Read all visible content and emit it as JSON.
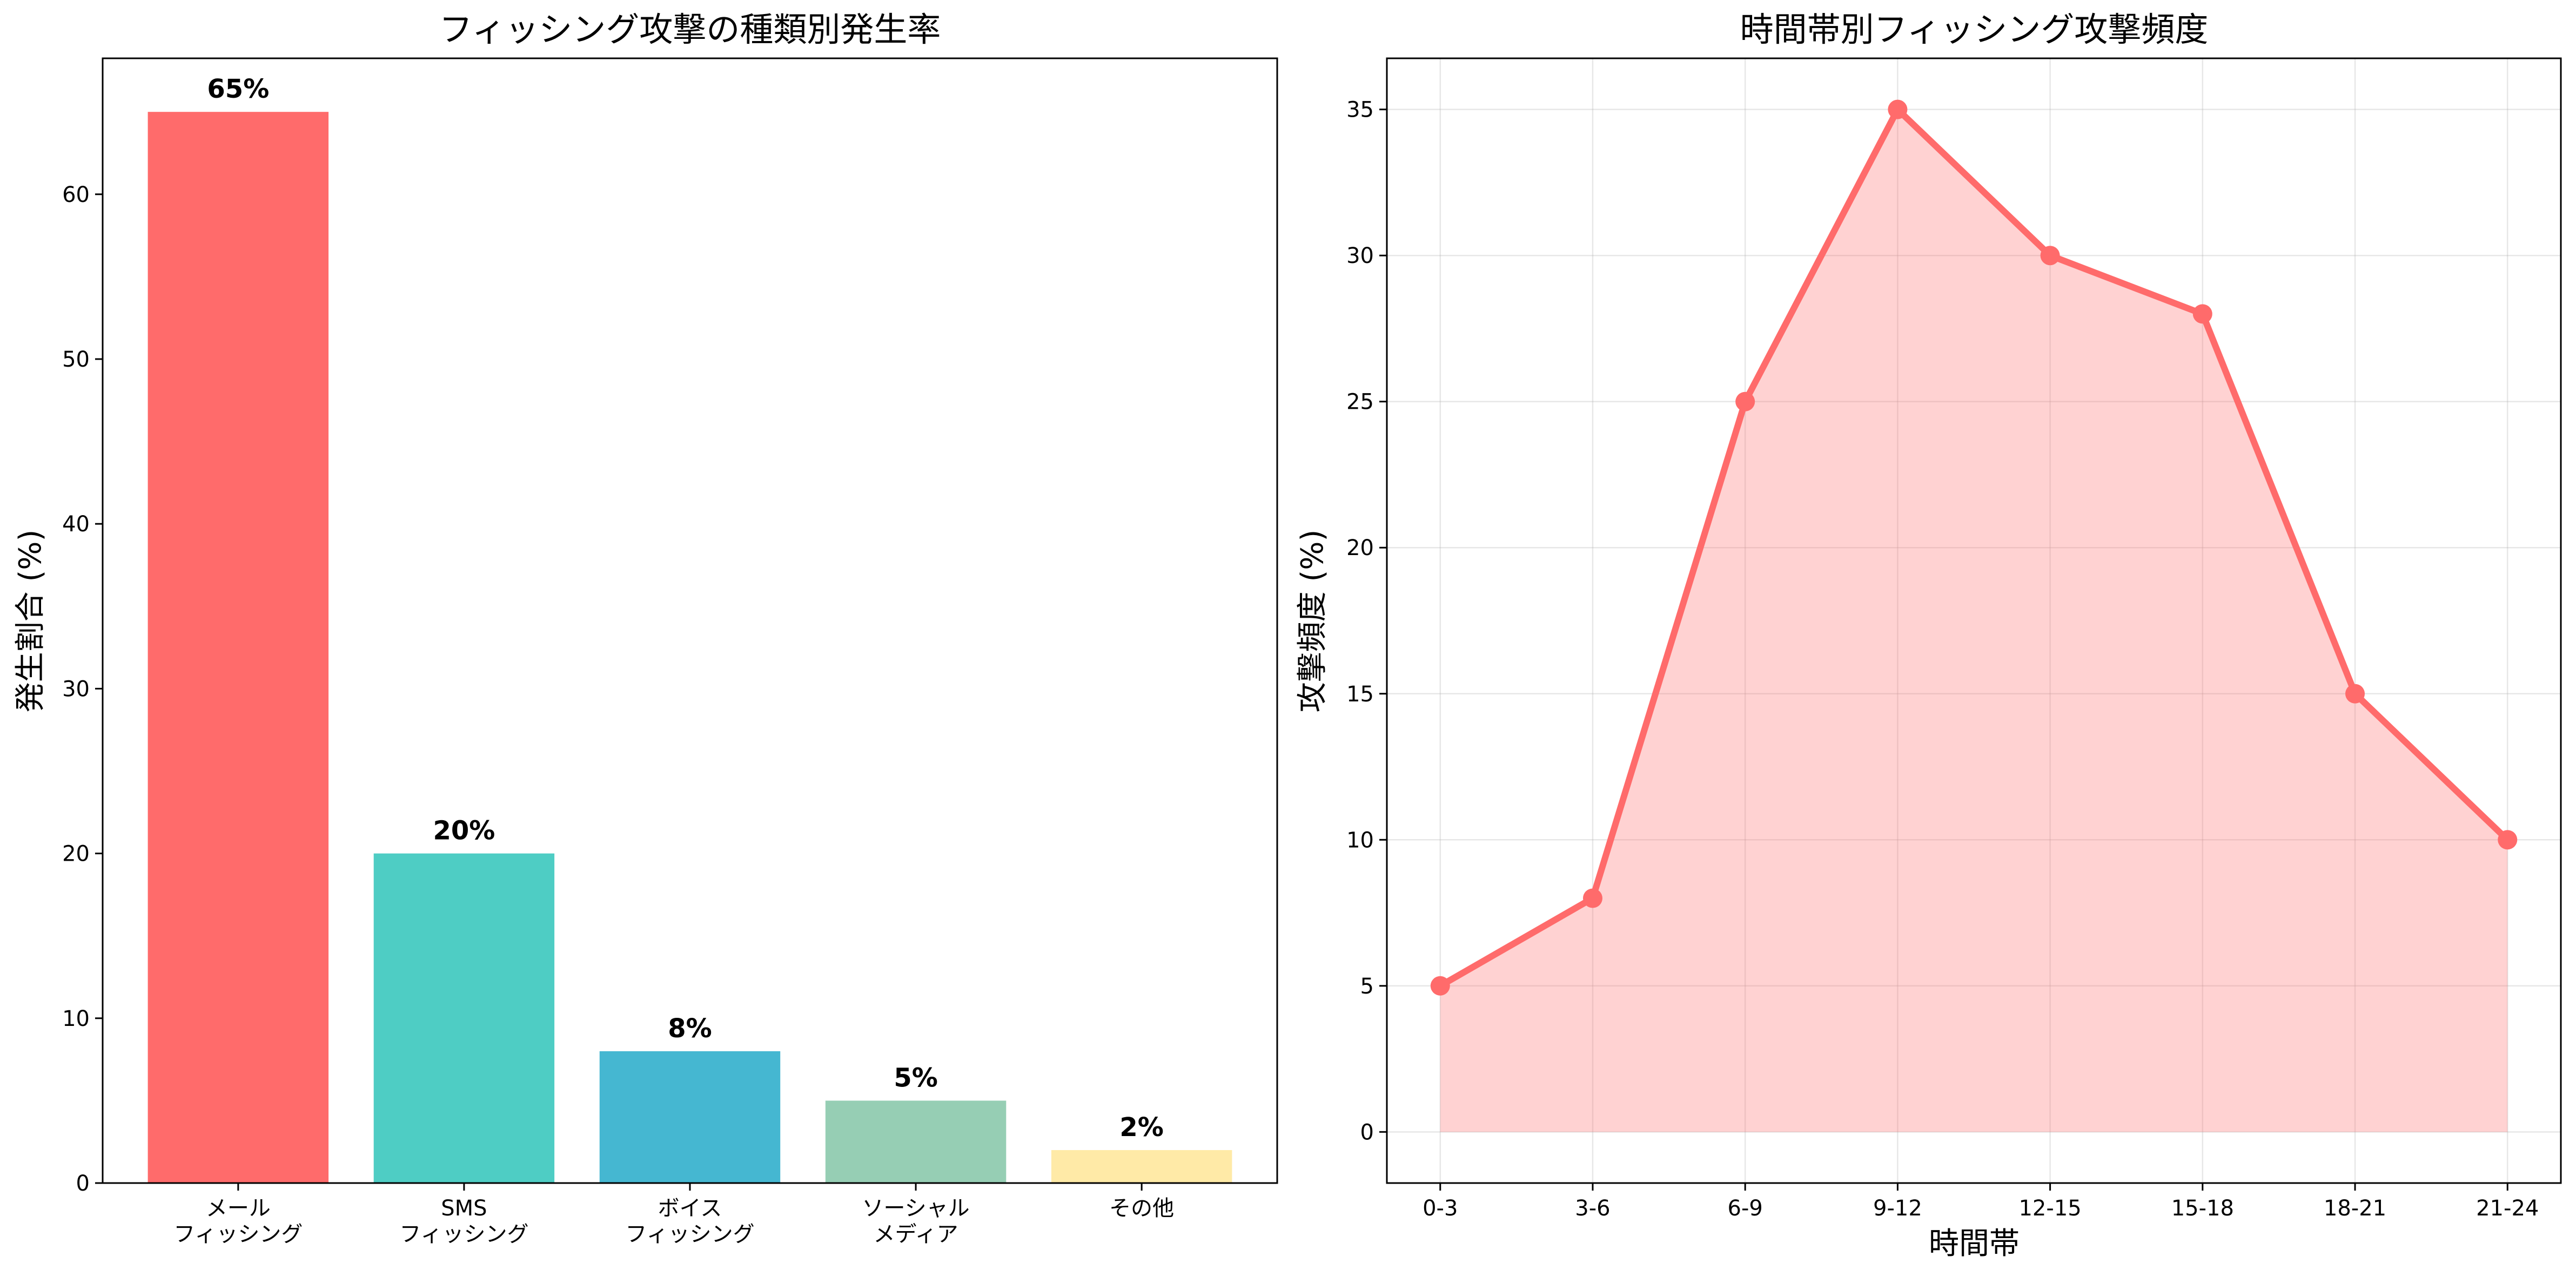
{
  "chart_data": [
    {
      "type": "bar",
      "title": "フィッシング攻撃の種類別発生率",
      "xlabel": "",
      "ylabel": "発生割合 (%)",
      "categories": [
        [
          "メール",
          "フィッシング"
        ],
        [
          "SMS",
          "フィッシング"
        ],
        [
          "ボイス",
          "フィッシング"
        ],
        [
          "ソーシャル",
          "メディア"
        ],
        [
          "その他"
        ]
      ],
      "values": [
        65,
        20,
        8,
        5,
        2
      ],
      "data_labels": [
        "65%",
        "20%",
        "8%",
        "5%",
        "2%"
      ],
      "colors": [
        "#ff6b6b",
        "#4ecdc4",
        "#45b7d1",
        "#96ceb4",
        "#ffeaa7"
      ],
      "ylim": [
        0,
        68.25
      ],
      "yticks": [
        0,
        10,
        20,
        30,
        40,
        50,
        60
      ],
      "grid": false
    },
    {
      "type": "area",
      "title": "時間帯別フィッシング攻撃頻度",
      "xlabel": "時間帯",
      "ylabel": "攻撃頻度 (%)",
      "categories": [
        "0-3",
        "3-6",
        "6-9",
        "9-12",
        "12-15",
        "15-18",
        "18-21",
        "21-24"
      ],
      "values": [
        5,
        8,
        25,
        35,
        30,
        28,
        15,
        10
      ],
      "line_color": "#ff6b6b",
      "fill_color": "#ff6b6b",
      "fill_opacity": 0.3,
      "ylim": [
        -1.75,
        36.75
      ],
      "yticks": [
        0,
        5,
        10,
        15,
        20,
        25,
        30,
        35
      ],
      "grid": true
    }
  ]
}
